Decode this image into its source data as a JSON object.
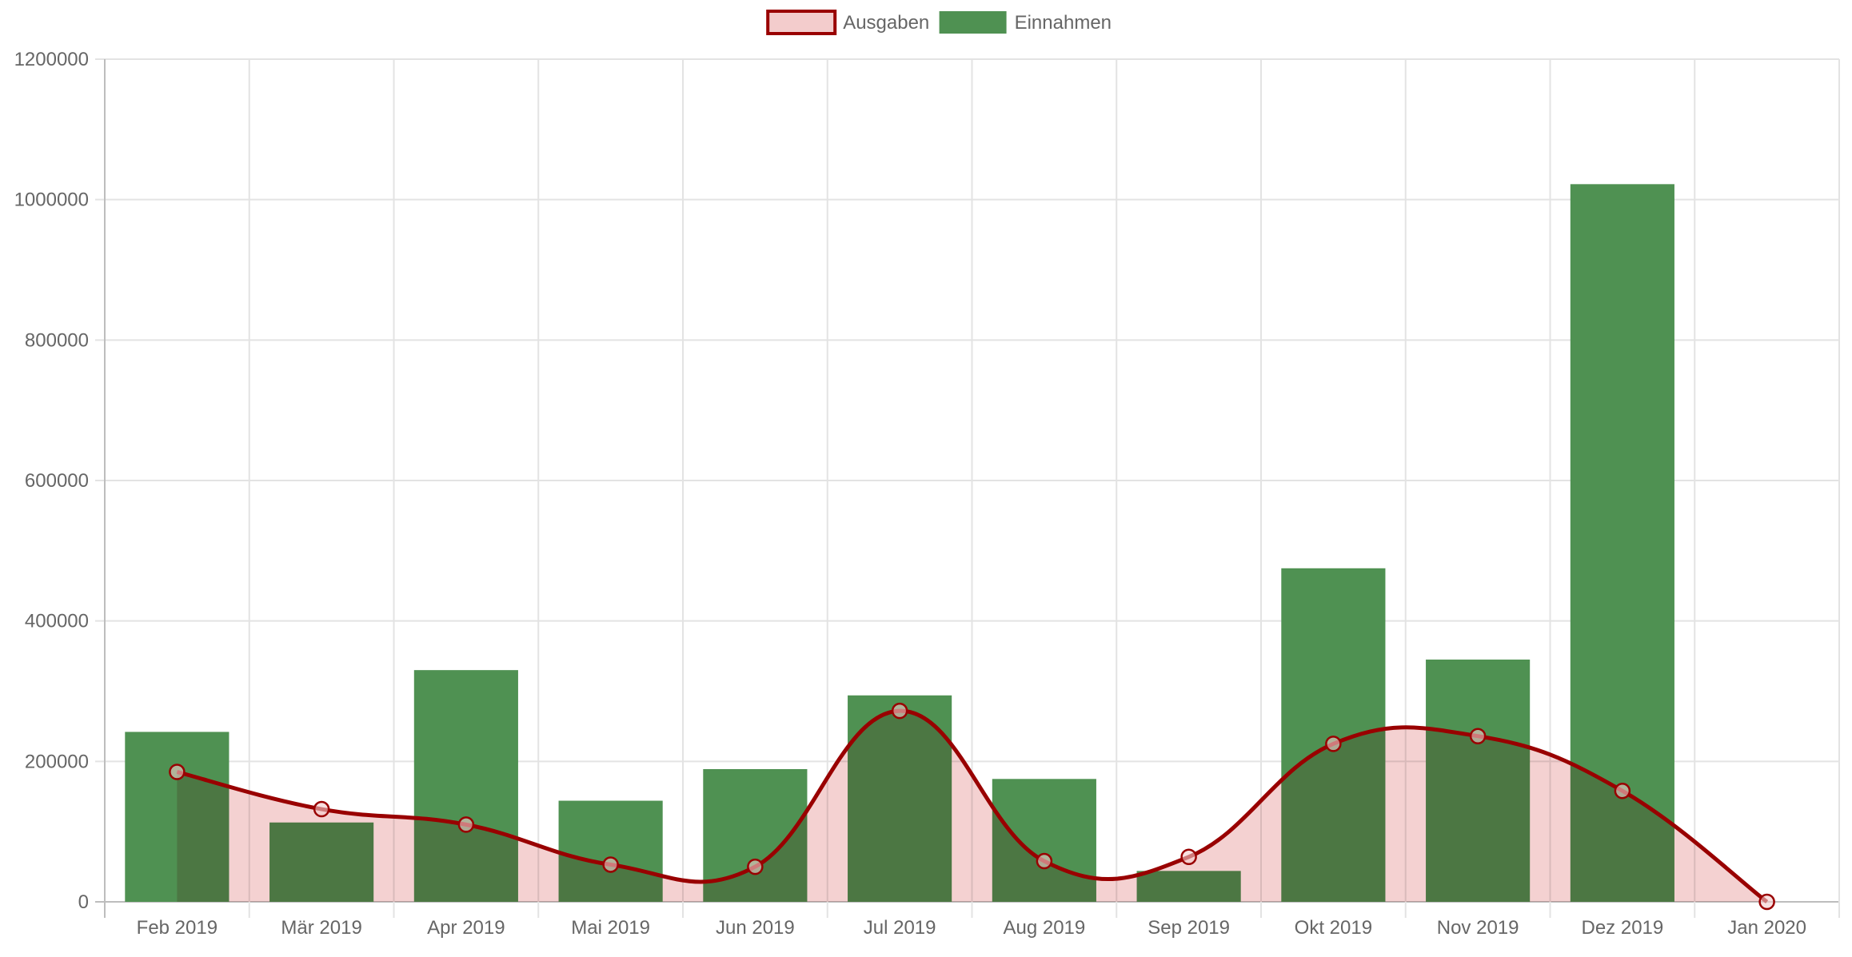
{
  "chart_data": {
    "type": "bar",
    "categories": [
      "Feb 2019",
      "Mär 2019",
      "Apr 2019",
      "Mai 2019",
      "Jun 2019",
      "Jul 2019",
      "Aug 2019",
      "Sep 2019",
      "Okt 2019",
      "Nov 2019",
      "Dez 2019",
      "Jan 2020"
    ],
    "series": [
      {
        "name": "Ausgaben",
        "kind": "line",
        "fill": true,
        "color": "#990000",
        "fill_color": "#f3cccc",
        "values": [
          185000,
          132000,
          110000,
          53000,
          50000,
          272000,
          58000,
          64000,
          225000,
          236000,
          158000,
          0
        ]
      },
      {
        "name": "Einnahmen",
        "kind": "bar",
        "color": "#4f9152",
        "values": [
          242000,
          113000,
          330000,
          144000,
          189000,
          294000,
          175000,
          44000,
          475000,
          345000,
          1022000,
          null
        ]
      }
    ],
    "y_ticks": [
      "0",
      "200000",
      "400000",
      "600000",
      "800000",
      "1000000",
      "1200000"
    ],
    "ylim": [
      0,
      1200000
    ],
    "grid": true,
    "legend_position": "top-center",
    "title": "",
    "xlabel": "",
    "ylabel": ""
  }
}
